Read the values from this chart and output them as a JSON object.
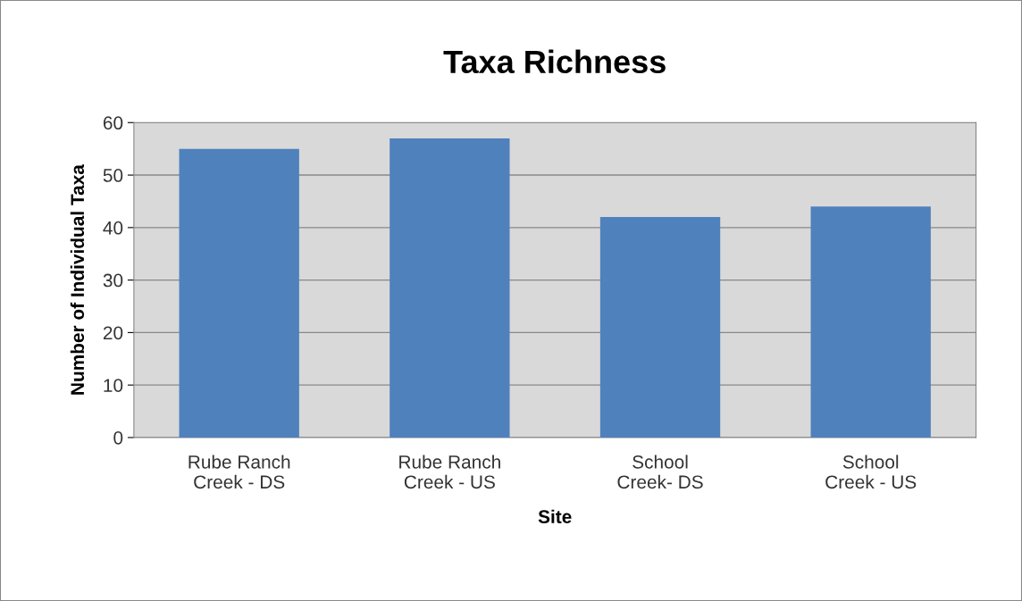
{
  "chart_data": {
    "type": "bar",
    "title": "Taxa Richness",
    "xlabel": "Site",
    "ylabel": "Number of Individual Taxa",
    "categories": [
      "Rube Ranch\nCreek - DS",
      "Rube Ranch\nCreek - US",
      "School\nCreek- DS",
      "School\nCreek - US"
    ],
    "values": [
      55,
      57,
      42,
      44
    ],
    "color": "#4f81bd",
    "ylim": [
      0,
      60
    ],
    "yticks": [
      0,
      10,
      20,
      30,
      40,
      50,
      60
    ],
    "grid": "y",
    "legend": false
  }
}
